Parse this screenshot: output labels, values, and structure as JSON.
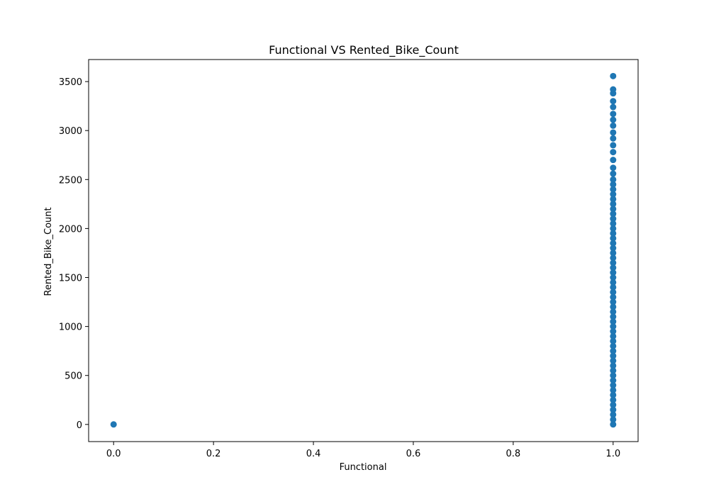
{
  "chart_data": {
    "type": "scatter",
    "title": "Functional VS Rented_Bike_Count",
    "xlabel": "Functional",
    "ylabel": "Rented_Bike_Count",
    "xlim": [
      -0.05,
      1.05
    ],
    "ylim": [
      -175,
      3725
    ],
    "x_ticks": [
      0.0,
      0.2,
      0.4,
      0.6,
      0.8,
      1.0
    ],
    "x_tick_labels": [
      "0.0",
      "0.2",
      "0.4",
      "0.6",
      "0.8",
      "1.0"
    ],
    "y_ticks": [
      0,
      500,
      1000,
      1500,
      2000,
      2500,
      3000,
      3500
    ],
    "y_tick_labels": [
      "0",
      "500",
      "1000",
      "1500",
      "2000",
      "2500",
      "3000",
      "3500"
    ],
    "grid": false,
    "marker_color": "#1f77b4",
    "series": [
      {
        "points": [
          [
            0,
            0
          ],
          [
            1,
            0
          ],
          [
            1,
            50
          ],
          [
            1,
            100
          ],
          [
            1,
            150
          ],
          [
            1,
            200
          ],
          [
            1,
            250
          ],
          [
            1,
            300
          ],
          [
            1,
            350
          ],
          [
            1,
            400
          ],
          [
            1,
            450
          ],
          [
            1,
            500
          ],
          [
            1,
            550
          ],
          [
            1,
            600
          ],
          [
            1,
            650
          ],
          [
            1,
            700
          ],
          [
            1,
            750
          ],
          [
            1,
            800
          ],
          [
            1,
            850
          ],
          [
            1,
            900
          ],
          [
            1,
            950
          ],
          [
            1,
            1000
          ],
          [
            1,
            1050
          ],
          [
            1,
            1100
          ],
          [
            1,
            1150
          ],
          [
            1,
            1200
          ],
          [
            1,
            1250
          ],
          [
            1,
            1300
          ],
          [
            1,
            1350
          ],
          [
            1,
            1400
          ],
          [
            1,
            1450
          ],
          [
            1,
            1500
          ],
          [
            1,
            1550
          ],
          [
            1,
            1600
          ],
          [
            1,
            1650
          ],
          [
            1,
            1700
          ],
          [
            1,
            1750
          ],
          [
            1,
            1800
          ],
          [
            1,
            1850
          ],
          [
            1,
            1900
          ],
          [
            1,
            1950
          ],
          [
            1,
            2000
          ],
          [
            1,
            2050
          ],
          [
            1,
            2100
          ],
          [
            1,
            2150
          ],
          [
            1,
            2200
          ],
          [
            1,
            2250
          ],
          [
            1,
            2300
          ],
          [
            1,
            2350
          ],
          [
            1,
            2400
          ],
          [
            1,
            2450
          ],
          [
            1,
            2500
          ],
          [
            1,
            2560
          ],
          [
            1,
            2620
          ],
          [
            1,
            2700
          ],
          [
            1,
            2780
          ],
          [
            1,
            2850
          ],
          [
            1,
            2920
          ],
          [
            1,
            2980
          ],
          [
            1,
            3050
          ],
          [
            1,
            3110
          ],
          [
            1,
            3170
          ],
          [
            1,
            3240
          ],
          [
            1,
            3300
          ],
          [
            1,
            3380
          ],
          [
            1,
            3420
          ],
          [
            1,
            3556
          ]
        ]
      }
    ]
  }
}
